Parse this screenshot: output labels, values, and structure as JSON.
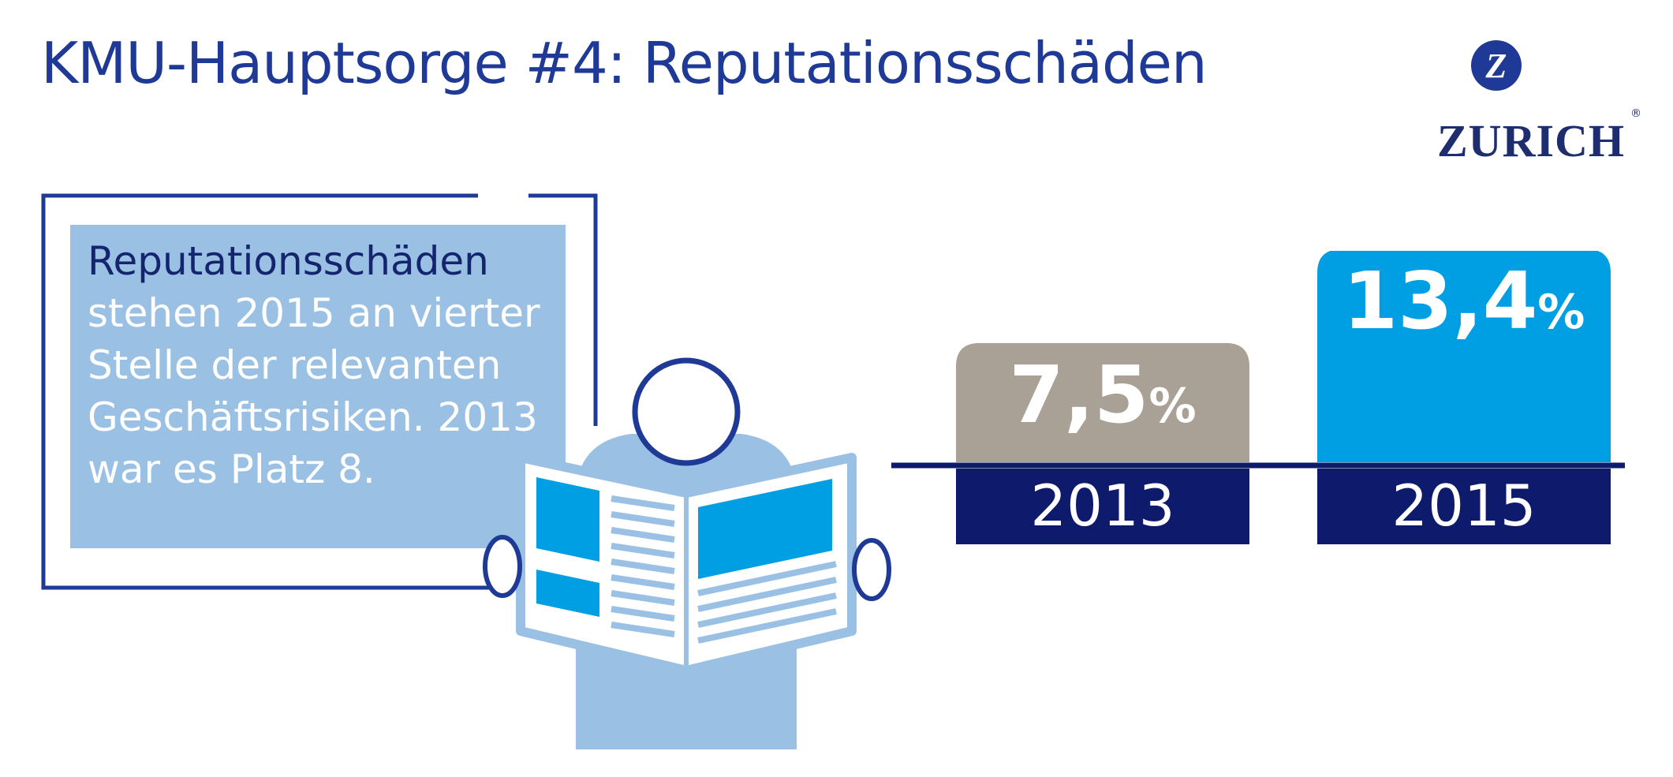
{
  "title": "KMU-Hauptsorge #4: Reputationsschäden",
  "logo": {
    "word": "ZURICH",
    "mark": "Z",
    "reg": "®"
  },
  "textbox": {
    "lines": [
      "Reputationsschäden",
      "stehen 2015 an vierter",
      "Stelle der relevanten",
      "Geschäftsrisiken. 2013",
      "war es Platz 8."
    ]
  },
  "chart_data": {
    "type": "bar",
    "categories": [
      "2013",
      "2015"
    ],
    "values": [
      7.5,
      13.4
    ],
    "value_labels": [
      {
        "number": "7,5",
        "unit": "%"
      },
      {
        "number": "13,4",
        "unit": "%"
      }
    ],
    "colors": [
      "#a9a096",
      "#009fe3"
    ],
    "label_bar_color": "#0e1a6b",
    "ylim": [
      0,
      13.4
    ]
  },
  "colors": {
    "title": "#1e3a96",
    "frame": "#1e3a96",
    "textbox_fill": "#9ac0e4",
    "figure_fill": "#9ac0e4",
    "figure_accent": "#009fe3"
  },
  "icons": [
    "zurich-logo-icon",
    "newspaper-reader-icon"
  ]
}
